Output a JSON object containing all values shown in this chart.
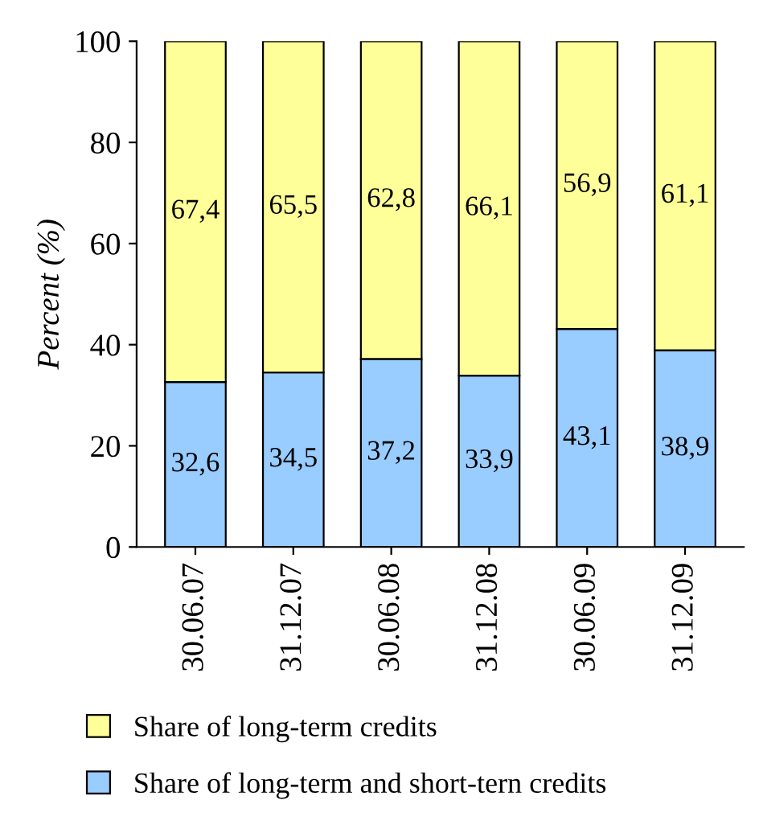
{
  "chart_data": {
    "type": "bar",
    "stacked": true,
    "ylabel": "Percent (%)",
    "categories": [
      "30.06.07",
      "31.12.07",
      "30.06.08",
      "31.12.08",
      "30.06.09",
      "31.12.09"
    ],
    "series": [
      {
        "name": "Share of long-term and short-tern credits",
        "color": "#99ccff",
        "values": [
          32.6,
          34.5,
          37.2,
          33.9,
          43.1,
          38.9
        ],
        "value_labels": [
          "32,6",
          "34,5",
          "37,2",
          "33,9",
          "43,1",
          "38,9"
        ]
      },
      {
        "name": "Share of long-term credits",
        "color": "#ffff99",
        "values": [
          67.4,
          65.5,
          62.8,
          66.1,
          56.9,
          61.1
        ],
        "value_labels": [
          "67,4",
          "65,5",
          "62,8",
          "66,1",
          "56,9",
          "61,1"
        ]
      }
    ],
    "ylim": [
      0,
      100
    ],
    "yticks": [
      0,
      20,
      40,
      60,
      80,
      100
    ],
    "grid": false,
    "legend": "bottom"
  }
}
